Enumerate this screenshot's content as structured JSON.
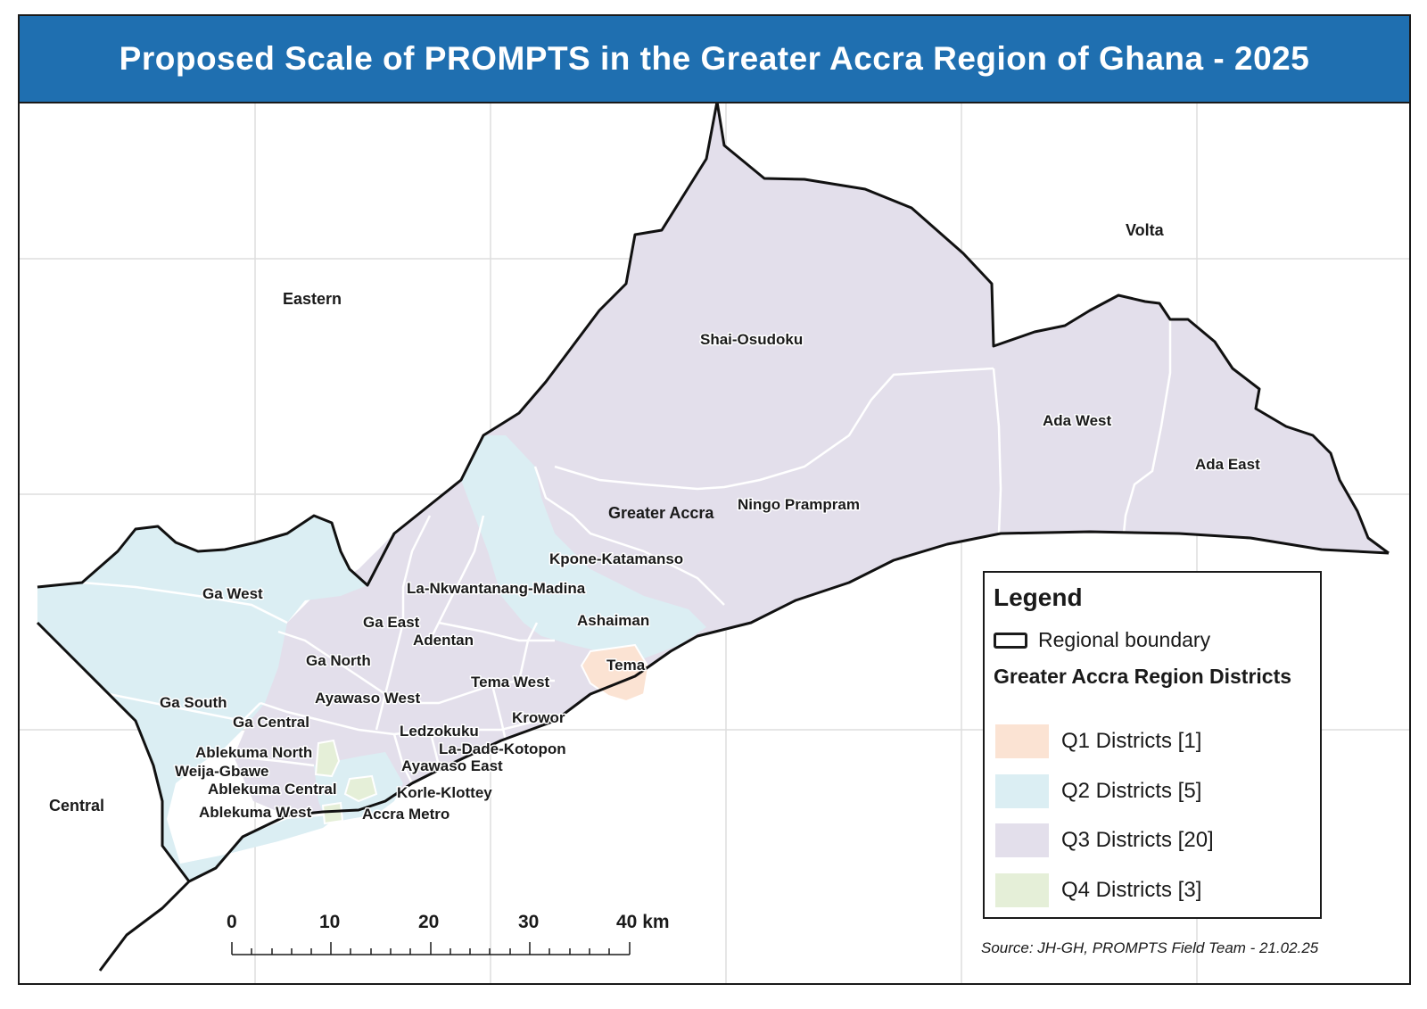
{
  "title": "Proposed Scale of PROMPTS in the Greater Accra Region of Ghana - 2025",
  "colors": {
    "title_bar": "#1f6fb0",
    "q1": "#fbe3d3",
    "q2": "#dbeef3",
    "q3": "#e3dfeb",
    "q4": "#e5efd8",
    "boundary": "#111111",
    "grid": "#dedede"
  },
  "neighbors": {
    "eastern": "Eastern",
    "volta": "Volta",
    "central": "Central"
  },
  "districts": {
    "shai_osudoku": "Shai-Osudoku",
    "ada_west": "Ada West",
    "ada_east": "Ada East",
    "greater_accra": "Greater Accra",
    "ningo_prampram": "Ningo Prampram",
    "kpone_katamanso": "Kpone-Katamanso",
    "la_nkwantanang_madina": "La-Nkwantanang-Madina",
    "ga_west": "Ga West",
    "ashaiman": "Ashaiman",
    "ga_east": "Ga East",
    "adentan": "Adentan",
    "ga_north": "Ga North",
    "tema": "Tema",
    "tema_west": "Tema West",
    "ayawaso_west": "Ayawaso West",
    "ga_south": "Ga South",
    "krowor": "Krowor",
    "ga_central": "Ga Central",
    "ledzokuku": "Ledzokuku",
    "la_dade_kotopon": "La-Dade-Kotopon",
    "ablekuma_north": "Ablekuma North",
    "weija_gbawe": "Weija-Gbawe",
    "ayawaso_east": "Ayawaso East",
    "ablekuma_central": "Ablekuma Central",
    "korle_klottey": "Korle-Klottey",
    "ablekuma_west": "Ablekuma West",
    "accra_metro": "Accra Metro"
  },
  "scale_bar": {
    "ticks": [
      "0",
      "10",
      "20",
      "30",
      "40 km"
    ]
  },
  "legend": {
    "title": "Legend",
    "boundary_label": "Regional boundary",
    "subtitle": "Greater Accra Region Districts",
    "items": [
      {
        "label": "Q1 Districts [1]",
        "color": "#fbe3d3"
      },
      {
        "label": "Q2 Districts [5]",
        "color": "#dbeef3"
      },
      {
        "label": "Q3 Districts [20]",
        "color": "#e3dfeb"
      },
      {
        "label": "Q4 Districts [3]",
        "color": "#e5efd8"
      }
    ]
  },
  "source": "Source: JH-GH,  PROMPTS Field Team - 21.02.25"
}
